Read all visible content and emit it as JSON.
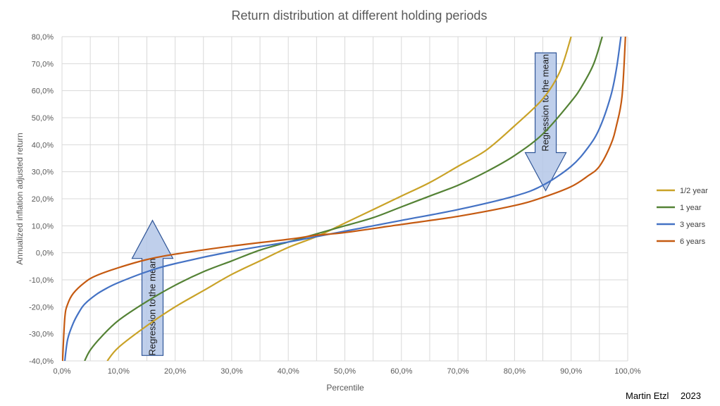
{
  "chart_data": {
    "type": "line",
    "title": "Return distribution at different holding periods",
    "xlabel": "Percentile",
    "ylabel": "Annualized inflation adjusted return",
    "xlim": [
      0,
      100
    ],
    "ylim": [
      -40,
      80
    ],
    "x_ticks": [
      0,
      10,
      20,
      30,
      40,
      50,
      60,
      70,
      80,
      90,
      100
    ],
    "x_tick_labels": [
      "0,0%",
      "10,0%",
      "20,0%",
      "30,0%",
      "40,0%",
      "50,0%",
      "60,0%",
      "70,0%",
      "80,0%",
      "90,0%",
      "100,0%"
    ],
    "y_ticks": [
      -40,
      -30,
      -20,
      -10,
      0,
      10,
      20,
      30,
      40,
      50,
      60,
      70,
      80
    ],
    "y_tick_labels": [
      "-40,0%",
      "-30,0%",
      "-20,0%",
      "-10,0%",
      "0,0%",
      "10,0%",
      "20,0%",
      "30,0%",
      "40,0%",
      "50,0%",
      "60,0%",
      "70,0%",
      "80,0%"
    ],
    "grid": true,
    "legend_position": "right",
    "series": [
      {
        "name": "1/2 year",
        "color": "#c9a227",
        "x": [
          8,
          10,
          15,
          20,
          25,
          30,
          35,
          40,
          45,
          50,
          55,
          60,
          65,
          70,
          75,
          80,
          85,
          88,
          90
        ],
        "y": [
          -40,
          -35,
          -27,
          -20,
          -14,
          -8,
          -3,
          2,
          6,
          11,
          16,
          21,
          26,
          32,
          38,
          47,
          57,
          67,
          80
        ]
      },
      {
        "name": "1 year",
        "color": "#548235",
        "x": [
          4,
          5,
          7,
          10,
          15,
          20,
          25,
          30,
          35,
          40,
          45,
          50,
          55,
          60,
          65,
          70,
          75,
          80,
          85,
          90,
          92,
          94,
          95.5
        ],
        "y": [
          -40,
          -36,
          -31,
          -25,
          -18,
          -12,
          -7,
          -3,
          1,
          4,
          7,
          10,
          13,
          17,
          21,
          25,
          30,
          36,
          44,
          56,
          62,
          70,
          80
        ]
      },
      {
        "name": "3 years",
        "color": "#4472c4",
        "x": [
          0.5,
          1,
          2,
          3,
          4,
          6,
          8,
          10,
          15,
          20,
          30,
          40,
          45,
          50,
          60,
          70,
          80,
          85,
          90,
          93,
          95,
          97,
          98,
          98.8
        ],
        "y": [
          -40,
          -32,
          -26,
          -22,
          -19,
          -15.5,
          -13,
          -11,
          -7,
          -4,
          0.5,
          4,
          6,
          8,
          12,
          16,
          21,
          25,
          32,
          39,
          46,
          58,
          68,
          80
        ]
      },
      {
        "name": "6 years",
        "color": "#c55a11",
        "x": [
          0.1,
          0.5,
          1,
          2,
          4,
          6,
          10,
          15,
          20,
          30,
          40,
          45,
          50,
          60,
          70,
          80,
          85,
          90,
          93,
          95,
          97,
          98,
          99,
          99.6
        ],
        "y": [
          -40,
          -24,
          -19,
          -15,
          -11,
          -8.5,
          -5.5,
          -2.5,
          -0.5,
          2.5,
          5,
          6.5,
          7.5,
          10.5,
          13.5,
          17.5,
          20.5,
          24.5,
          28.5,
          32,
          40,
          47,
          58,
          80
        ]
      }
    ],
    "annotations": [
      {
        "text": "Regression to the mean",
        "direction": "up",
        "x": 16,
        "y_from": -38,
        "y_to": 12
      },
      {
        "text": "Regression to the mean",
        "direction": "down",
        "x": 85.5,
        "y_from": 74,
        "y_to": 23
      }
    ]
  },
  "footer": {
    "author": "Martin Etzl",
    "year": "2023"
  }
}
